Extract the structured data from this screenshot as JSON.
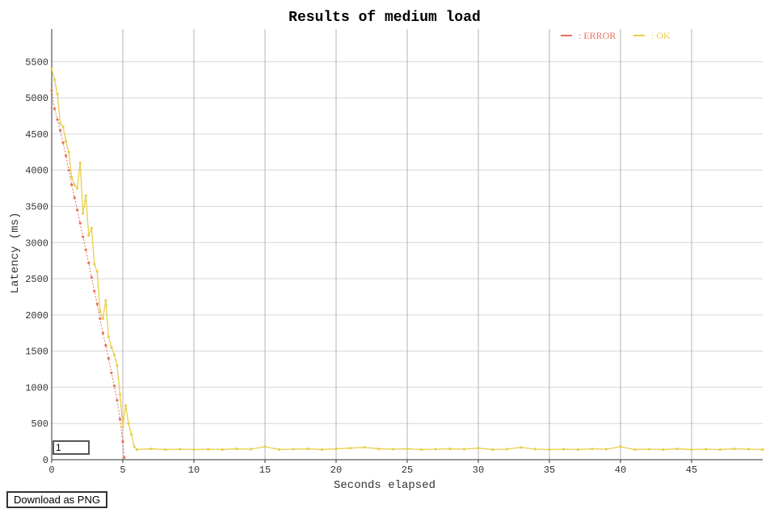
{
  "chart_data": {
    "type": "scatter",
    "title": "Results of medium load",
    "xlabel": "Seconds elapsed",
    "ylabel": "Latency (ms)",
    "xlim": [
      0,
      50
    ],
    "ylim": [
      0,
      5950
    ],
    "x_ticks": [
      0,
      5,
      10,
      15,
      20,
      25,
      30,
      35,
      40,
      45
    ],
    "y_ticks": [
      0,
      500,
      1000,
      1500,
      2000,
      2500,
      3000,
      3500,
      4000,
      4500,
      5000,
      5500
    ],
    "grid": true,
    "legend_placement": "top-right",
    "series": [
      {
        "name": ": ERROR",
        "color": "#e8725c",
        "x": [
          0.0,
          0.2,
          0.4,
          0.6,
          0.8,
          1.0,
          1.2,
          1.4,
          1.6,
          1.8,
          2.0,
          2.2,
          2.4,
          2.6,
          2.8,
          3.0,
          3.2,
          3.4,
          3.6,
          3.8,
          4.0,
          4.2,
          4.4,
          4.6,
          4.8,
          5.0,
          5.1
        ],
        "y": [
          5100,
          4850,
          4700,
          4550,
          4380,
          4200,
          4000,
          3800,
          3620,
          3450,
          3270,
          3080,
          2900,
          2720,
          2520,
          2330,
          2150,
          1950,
          1750,
          1580,
          1400,
          1200,
          1020,
          820,
          560,
          250,
          30
        ]
      },
      {
        "name": ": OK",
        "color": "#e8cf4c",
        "x": [
          0.0,
          0.2,
          0.4,
          0.6,
          0.8,
          1.0,
          1.2,
          1.4,
          1.6,
          1.8,
          2.0,
          2.2,
          2.4,
          2.6,
          2.8,
          3.0,
          3.2,
          3.4,
          3.6,
          3.8,
          4.0,
          4.2,
          4.4,
          4.6,
          4.8,
          5.0,
          5.2,
          5.4,
          5.6,
          5.8,
          6.0,
          7,
          8,
          9,
          10,
          11,
          12,
          13,
          14,
          15,
          16,
          17,
          18,
          19,
          20,
          21,
          22,
          23,
          24,
          25,
          26,
          27,
          28,
          29,
          30,
          31,
          32,
          33,
          34,
          35,
          36,
          37,
          38,
          39,
          40,
          41,
          42,
          43,
          44,
          45,
          46,
          47,
          48,
          49,
          50
        ],
        "y": [
          5400,
          5250,
          5050,
          4650,
          4600,
          4400,
          4250,
          3900,
          3800,
          3750,
          4100,
          3400,
          3650,
          3100,
          3200,
          2700,
          2600,
          2050,
          1950,
          2200,
          1700,
          1550,
          1450,
          1300,
          900,
          450,
          750,
          500,
          350,
          180,
          140,
          150,
          140,
          145,
          140,
          145,
          140,
          150,
          145,
          180,
          140,
          145,
          150,
          140,
          150,
          160,
          170,
          150,
          145,
          150,
          140,
          145,
          150,
          145,
          160,
          140,
          145,
          170,
          145,
          140,
          145,
          140,
          150,
          145,
          180,
          140,
          145,
          140,
          150,
          140,
          145,
          140,
          150,
          145,
          140
        ]
      }
    ]
  },
  "controls": {
    "zoom_value": "1",
    "download_label": "Download as PNG"
  }
}
